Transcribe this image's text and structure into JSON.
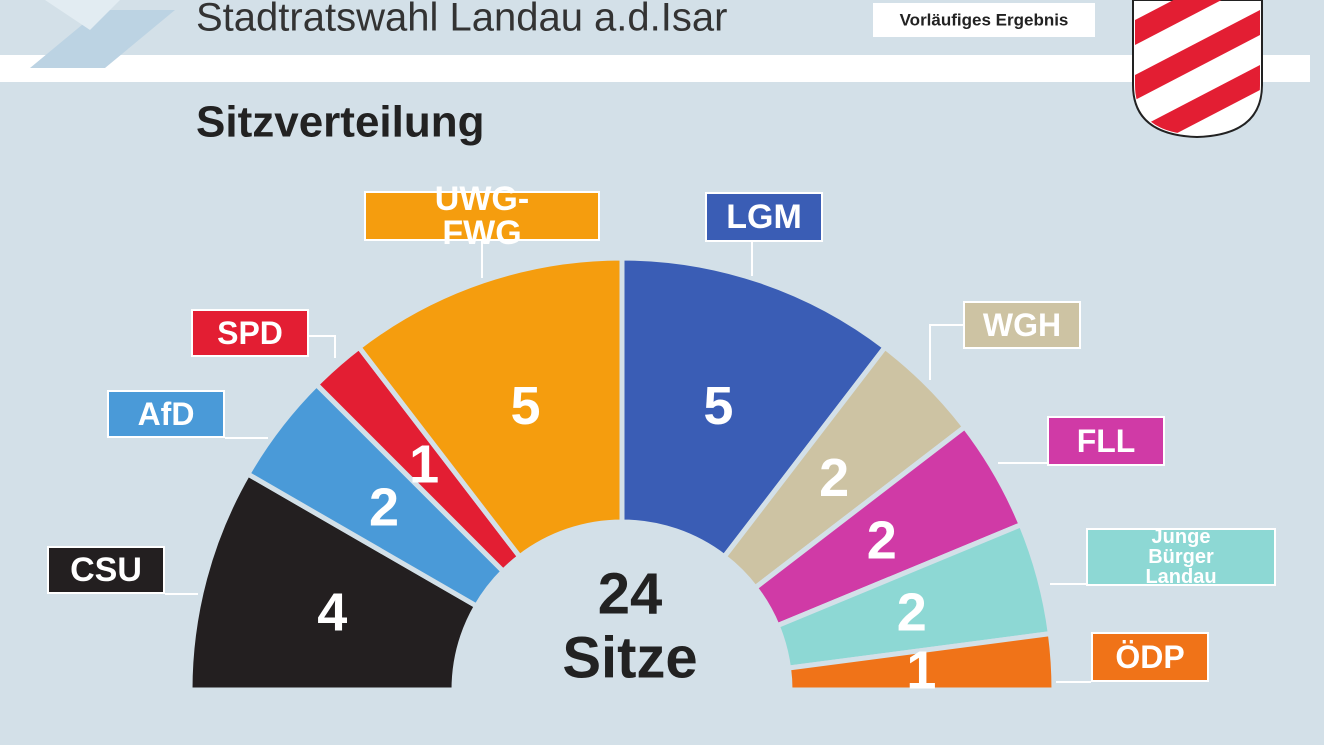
{
  "header": {
    "title": "Stadtratswahl Landau a.d.Isar",
    "badge": "Vorläufiges Ergebnis"
  },
  "chart_data": {
    "type": "parliament",
    "title": "Sitzverteilung",
    "categories": [
      "CSU",
      "AfD",
      "SPD",
      "UWG-FWG",
      "LGM",
      "WGH",
      "FLL",
      "Junge Bürger Landau",
      "ÖDP"
    ],
    "values": [
      4,
      2,
      1,
      5,
      5,
      2,
      2,
      2,
      1
    ],
    "colors": [
      "#231f20",
      "#4a9ad8",
      "#e31e33",
      "#f59d0e",
      "#3a5db5",
      "#cdc3a3",
      "#d03aa6",
      "#8dd8d4",
      "#f07318"
    ],
    "total": 24,
    "total_label": "Sitze"
  }
}
